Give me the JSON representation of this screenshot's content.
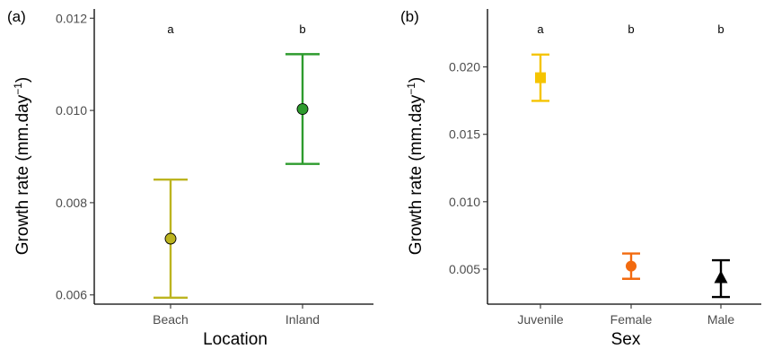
{
  "chart_data": [
    {
      "panel_label": "(a)",
      "type": "scatter",
      "xlabel": "Location",
      "ylabel": "Growth rate (mm.day",
      "ylabel_sup": "−1",
      "ylabel_close": ")",
      "ylim": [
        0.0058,
        0.0122
      ],
      "yticks": [
        0.006,
        0.008,
        0.01,
        0.012
      ],
      "ytick_labels": [
        "0.006",
        "0.008",
        "0.010",
        "0.012"
      ],
      "grid": false,
      "categories": [
        "Beach",
        "Inland"
      ],
      "points": [
        {
          "category": "Beach",
          "mean": 0.00722,
          "lower": 0.00594,
          "upper": 0.0085,
          "letter": "a",
          "color": "#bcb41f",
          "shape": "circle"
        },
        {
          "category": "Inland",
          "mean": 0.01003,
          "lower": 0.00884,
          "upper": 0.01122,
          "letter": "b",
          "color": "#2e9b2e",
          "shape": "circle"
        }
      ]
    },
    {
      "panel_label": "(b)",
      "type": "scatter",
      "xlabel": "Sex",
      "ylabel": "Growth rate (mm.day",
      "ylabel_sup": "−1",
      "ylabel_close": ")",
      "ylim": [
        0.0024,
        0.0243
      ],
      "yticks": [
        0.005,
        0.01,
        0.015,
        0.02
      ],
      "ytick_labels": [
        "0.005",
        "0.010",
        "0.015",
        "0.020"
      ],
      "grid": false,
      "categories": [
        "Juvenile",
        "Female",
        "Male"
      ],
      "points": [
        {
          "category": "Juvenile",
          "mean": 0.0192,
          "lower": 0.01748,
          "upper": 0.02092,
          "letter": "a",
          "color": "#f5c400",
          "shape": "square"
        },
        {
          "category": "Female",
          "mean": 0.00522,
          "lower": 0.00428,
          "upper": 0.00616,
          "letter": "b",
          "color": "#f26a0f",
          "shape": "circle"
        },
        {
          "category": "Male",
          "mean": 0.00436,
          "lower": 0.00293,
          "upper": 0.00566,
          "letter": "b",
          "color": "#000000",
          "shape": "triangle"
        }
      ]
    }
  ]
}
